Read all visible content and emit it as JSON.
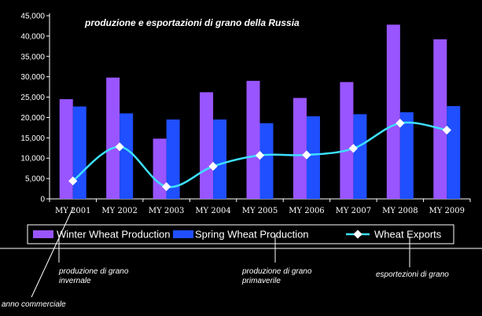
{
  "chart_data": {
    "type": "bar",
    "title": "produzione e esportazioni di grano della Russia",
    "categories": [
      "MY 2001",
      "MY 2002",
      "MY 2003",
      "MY 2004",
      "MY 2005",
      "MY 2006",
      "MY 2007",
      "MY 2008",
      "MY 2009"
    ],
    "series": [
      {
        "name": "Winter Wheat Production",
        "kind": "bar",
        "color": "#9955ff",
        "values": [
          24500,
          29800,
          14800,
          26200,
          29000,
          24800,
          28700,
          42800,
          39200
        ]
      },
      {
        "name": "Spring Wheat Production",
        "kind": "bar",
        "color": "#1f4fff",
        "values": [
          22700,
          21000,
          19500,
          19500,
          18600,
          20300,
          20800,
          21300,
          22800
        ]
      },
      {
        "name": "Wheat Exports",
        "kind": "line",
        "color": "#3de0ff",
        "values": [
          4400,
          12800,
          3000,
          8000,
          10700,
          10800,
          12400,
          18600,
          16900
        ]
      }
    ],
    "ylim": [
      0,
      45000
    ],
    "yticks": [
      "0",
      "5,000",
      "10,000",
      "15,000",
      "20,000",
      "25,000",
      "30,000",
      "35,000",
      "40,000",
      "45,000"
    ],
    "grid": false,
    "legend_position": "bottom"
  },
  "annotations": {
    "winter": "produzione di grano invernale",
    "spring": "produzione di grano primaverile",
    "exports": "esportezioni di grano",
    "year": "anno commerciale"
  }
}
